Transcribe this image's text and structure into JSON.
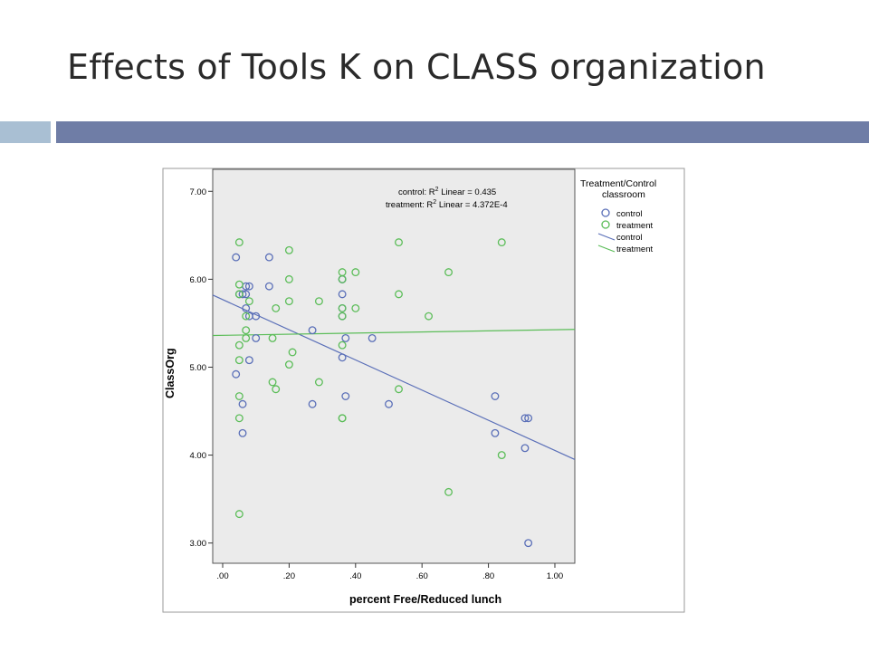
{
  "slide": {
    "title": "Effects of Tools K on CLASS organization",
    "accent_colors": {
      "light_bar": "#a9bfd3",
      "dark_bar": "#6f7da6"
    }
  },
  "chart_data": {
    "type": "scatter",
    "title": "",
    "xlabel": "percent Free/Reduced lunch",
    "ylabel": "ClassOrg",
    "xlim": [
      -0.03,
      1.06
    ],
    "ylim": [
      2.77,
      7.25
    ],
    "x_ticks": [
      0,
      0.2,
      0.4,
      0.6,
      0.8,
      1.0
    ],
    "x_tick_labels": [
      ".00",
      ".20",
      ".40",
      ".60",
      ".80",
      "1.00"
    ],
    "y_ticks": [
      3,
      4,
      5,
      6,
      7
    ],
    "y_tick_labels": [
      "3.00",
      "4.00",
      "5.00",
      "6.00",
      "7.00"
    ],
    "grid": false,
    "plot_background": "#ebebeb",
    "annotations": {
      "control_r2": "control: R",
      "control_r2_rest": " Linear = 0.435",
      "treatment_r2": "treatment: R",
      "treatment_r2_rest": " Linear = 4.372E-4",
      "superscript": "2"
    },
    "legend": {
      "title_line1": "Treatment/Control",
      "title_line2": "classroom",
      "placement": "right",
      "items": [
        {
          "label": "control",
          "kind": "marker",
          "color": "#5a6fb8"
        },
        {
          "label": "treatment",
          "kind": "marker",
          "color": "#5bbd58"
        },
        {
          "label": "control",
          "kind": "line",
          "color": "#5a6fb8"
        },
        {
          "label": "treatment",
          "kind": "line",
          "color": "#5bbd58"
        }
      ]
    },
    "series": [
      {
        "name": "control",
        "color": "#5a6fb8",
        "points": [
          [
            0.04,
            6.25
          ],
          [
            0.14,
            6.25
          ],
          [
            0.05,
            5.83
          ],
          [
            0.06,
            5.83
          ],
          [
            0.07,
            5.83
          ],
          [
            0.08,
            5.92
          ],
          [
            0.07,
            5.92
          ],
          [
            0.14,
            5.92
          ],
          [
            0.07,
            5.67
          ],
          [
            0.08,
            5.58
          ],
          [
            0.1,
            5.58
          ],
          [
            0.1,
            5.33
          ],
          [
            0.27,
            5.42
          ],
          [
            0.36,
            6.0
          ],
          [
            0.36,
            6.0
          ],
          [
            0.36,
            5.83
          ],
          [
            0.37,
            5.33
          ],
          [
            0.45,
            5.33
          ],
          [
            0.36,
            5.67
          ],
          [
            0.36,
            5.58
          ],
          [
            0.08,
            5.08
          ],
          [
            0.04,
            4.92
          ],
          [
            0.06,
            4.58
          ],
          [
            0.06,
            4.25
          ],
          [
            0.27,
            4.58
          ],
          [
            0.36,
            5.11
          ],
          [
            0.37,
            4.67
          ],
          [
            0.5,
            4.58
          ],
          [
            0.82,
            4.67
          ],
          [
            0.82,
            4.25
          ],
          [
            0.91,
            4.42
          ],
          [
            0.92,
            4.42
          ],
          [
            0.91,
            4.08
          ],
          [
            0.92,
            3.0
          ]
        ]
      },
      {
        "name": "treatment",
        "color": "#5bbd58",
        "points": [
          [
            0.05,
            6.42
          ],
          [
            0.2,
            6.33
          ],
          [
            0.53,
            6.42
          ],
          [
            0.84,
            6.42
          ],
          [
            0.05,
            5.94
          ],
          [
            0.36,
            6.08
          ],
          [
            0.4,
            6.08
          ],
          [
            0.68,
            6.08
          ],
          [
            0.2,
            6.0
          ],
          [
            0.36,
            6.0
          ],
          [
            0.05,
            5.83
          ],
          [
            0.08,
            5.75
          ],
          [
            0.2,
            5.75
          ],
          [
            0.29,
            5.75
          ],
          [
            0.53,
            5.83
          ],
          [
            0.16,
            5.67
          ],
          [
            0.36,
            5.67
          ],
          [
            0.4,
            5.67
          ],
          [
            0.07,
            5.58
          ],
          [
            0.36,
            5.58
          ],
          [
            0.62,
            5.58
          ],
          [
            0.07,
            5.42
          ],
          [
            0.07,
            5.33
          ],
          [
            0.15,
            5.33
          ],
          [
            0.05,
            5.25
          ],
          [
            0.36,
            5.25
          ],
          [
            0.21,
            5.17
          ],
          [
            0.05,
            5.08
          ],
          [
            0.2,
            5.03
          ],
          [
            0.15,
            4.83
          ],
          [
            0.29,
            4.83
          ],
          [
            0.16,
            4.75
          ],
          [
            0.53,
            4.75
          ],
          [
            0.05,
            4.67
          ],
          [
            0.05,
            4.42
          ],
          [
            0.36,
            4.42
          ],
          [
            0.36,
            4.42
          ],
          [
            0.84,
            4.0
          ],
          [
            0.68,
            3.58
          ],
          [
            0.05,
            3.33
          ]
        ]
      }
    ],
    "fit_lines": [
      {
        "name": "control",
        "color": "#5a6fb8",
        "x": [
          -0.03,
          1.06
        ],
        "y": [
          5.82,
          3.95
        ]
      },
      {
        "name": "treatment",
        "color": "#5bbd58",
        "x": [
          -0.03,
          1.06
        ],
        "y": [
          5.36,
          5.43
        ]
      }
    ]
  }
}
